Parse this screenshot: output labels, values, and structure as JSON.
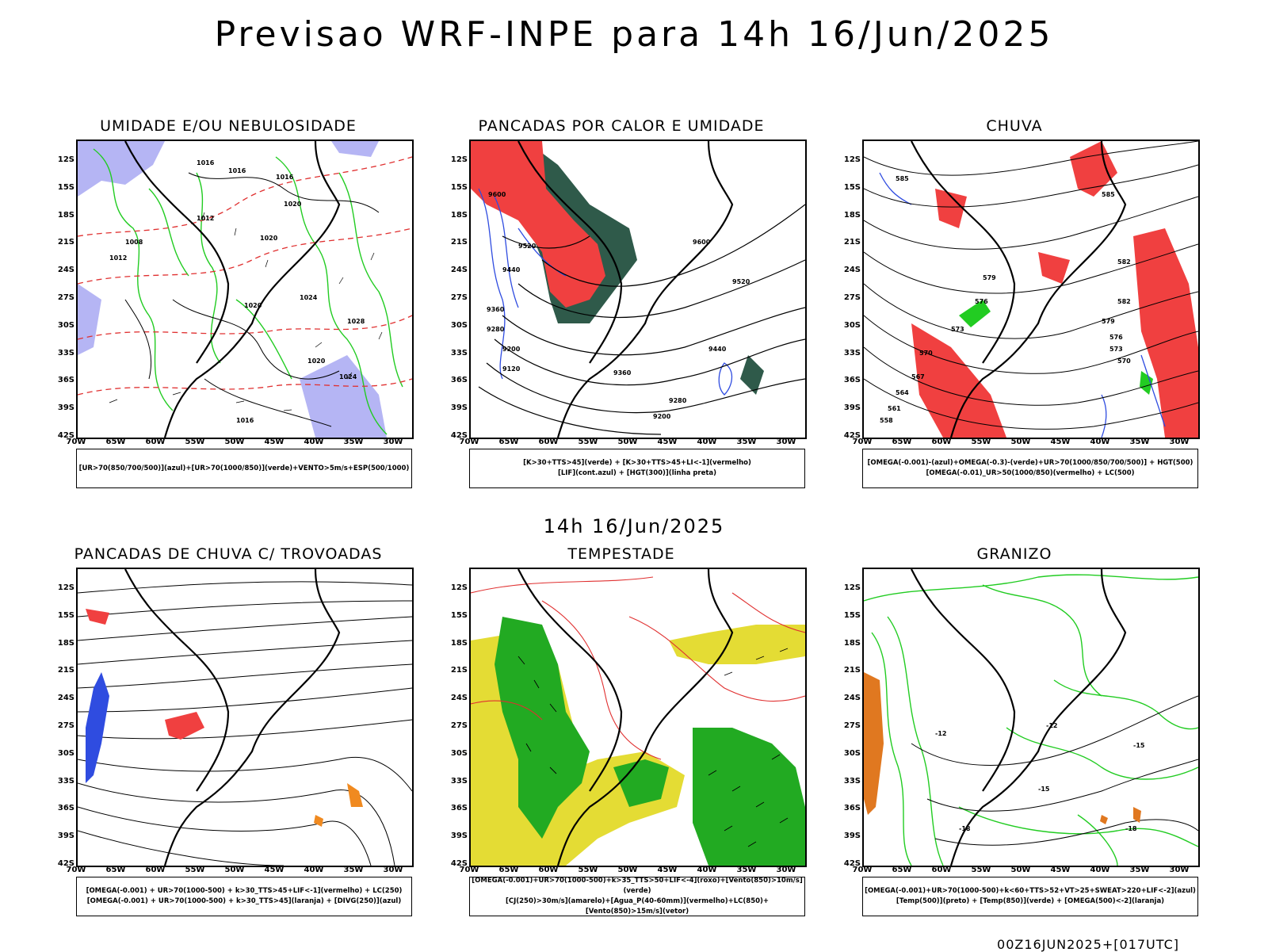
{
  "header": {
    "title": "Previsao WRF-INPE  para 14h 16/Jun/2025",
    "mid_time": "14h 16/Jun/2025",
    "footer_stamp": "00Z16JUN2025+[017UTC]"
  },
  "axes": {
    "lat_ticks": [
      "12S",
      "15S",
      "18S",
      "21S",
      "24S",
      "27S",
      "30S",
      "33S",
      "36S",
      "39S",
      "42S"
    ],
    "lon_ticks": [
      "70W",
      "65W",
      "60W",
      "55W",
      "50W",
      "45W",
      "40W",
      "35W",
      "30W"
    ]
  },
  "panels": [
    {
      "id": "umidade",
      "title": "UMIDADE E/OU NEBULOSIDADE",
      "legend": [
        "[UR>70(850/700/500)](azul)+[UR>70(1000/850)](verde)+VENTO>5m/s+ESP(500/1000)"
      ],
      "labels": [
        "1016",
        "1016",
        "1016",
        "1020",
        "1020",
        "1012",
        "1008",
        "1020",
        "1024",
        "1028",
        "1020",
        "1024",
        "1016",
        "1012"
      ]
    },
    {
      "id": "pancadas-calor",
      "title": "PANCADAS POR CALOR E UMIDADE",
      "legend": [
        "[K>30+TTS>45](verde) + [K>30+TTS>45+LI<-1](vermelho)",
        "[LIF](cont.azul) + [HGT(300)](linha preta)"
      ],
      "labels": [
        "9600",
        "9520",
        "9440",
        "9360",
        "9280",
        "9200",
        "9120",
        "9600",
        "9520",
        "9440",
        "9360",
        "9280",
        "9200"
      ]
    },
    {
      "id": "chuva",
      "title": "CHUVA",
      "legend": [
        "[OMEGA(-0.001)-(azul)+OMEGA(-0.3)-(verde)+UR>70(1000/850/700/500)] + HGT(500)",
        "[OMEGA(-0.01)_UR>50(1000/850)(vermelho) + LC(500)"
      ],
      "labels": [
        "585",
        "585",
        "582",
        "579",
        "576",
        "573",
        "570",
        "567",
        "564",
        "561",
        "558",
        "582",
        "579",
        "576",
        "573",
        "570"
      ]
    },
    {
      "id": "pancadas-trovoadas",
      "title": "PANCADAS DE CHUVA C/ TROVOADAS",
      "legend": [
        "[OMEGA(-0.001) + UR>70(1000-500) + k>30_TTS>45+LIF<-1](vermelho) + LC(250)",
        "[OMEGA(-0.001) + UR>70(1000-500) + k>30_TTS>45](laranja) + [DIVG(250)](azul)"
      ],
      "labels": []
    },
    {
      "id": "tempestade",
      "title": "TEMPESTADE",
      "legend": [
        "[OMEGA(-0.001)+UR>70(1000-500)+k>35_TTS>50+LIF<-4](roxo)+[Vento(850)>10m/s](verde)",
        "[CJ(250)>30m/s](amarelo)+[Agua_P(40-60mm)](vermelho)+LC(850)+[Vento(850)>15m/s](vetor)"
      ],
      "labels": []
    },
    {
      "id": "granizo",
      "title": "GRANIZO",
      "legend": [
        "[OMEGA(-0.001)+UR>70(1000-500)+k<60+TTS>52+VT>25+SWEAT>220+LIF<-2](azul)",
        "[Temp(500)](preto) + [Temp(850)](verde) + [OMEGA(500)<-2](laranja)"
      ],
      "labels": [
        "-12",
        "-12",
        "-15",
        "-15",
        "-18",
        "-18"
      ]
    }
  ]
}
